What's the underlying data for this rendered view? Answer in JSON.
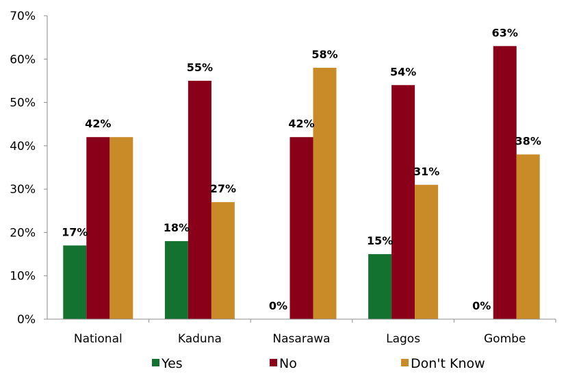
{
  "chart_data": {
    "type": "bar",
    "title": "",
    "xlabel": "",
    "ylabel": "",
    "ylim": [
      0,
      70
    ],
    "y_ticks": [
      "0%",
      "10%",
      "20%",
      "30%",
      "40%",
      "50%",
      "60%",
      "70%"
    ],
    "y_tick_values": [
      0,
      10,
      20,
      30,
      40,
      50,
      60,
      70
    ],
    "categories": [
      "National",
      "Kaduna",
      "Nasarawa",
      "Lagos",
      "Gombe"
    ],
    "series": [
      {
        "name": "Yes",
        "color": "#13722f",
        "values": [
          17,
          18,
          0,
          15,
          0
        ],
        "labels": [
          "17%",
          "18%",
          "0%",
          "15%",
          "0%"
        ]
      },
      {
        "name": "No",
        "color": "#8b0019",
        "values": [
          42,
          55,
          42,
          54,
          63
        ],
        "labels": [
          "42%",
          "55%",
          "42%",
          "54%",
          "63%"
        ]
      },
      {
        "name": "Don't Know",
        "color": "#c98b28",
        "values": [
          42,
          27,
          58,
          31,
          38
        ],
        "labels": [
          "",
          "27%",
          "58%",
          "31%",
          "38%"
        ]
      }
    ],
    "grid": false,
    "legend_position": "bottom"
  }
}
